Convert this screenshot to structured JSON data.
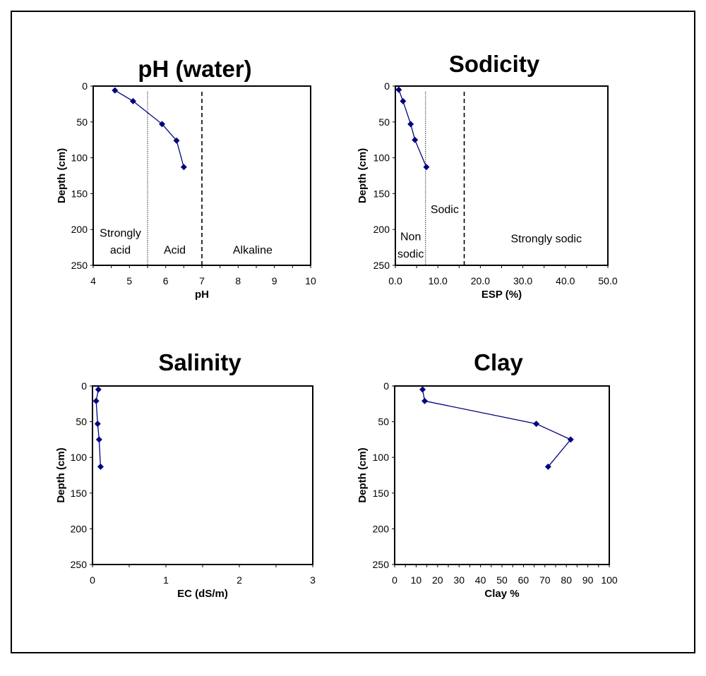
{
  "colors": {
    "series": "#000080",
    "axis": "#000000",
    "background": "#ffffff"
  },
  "chart_data": [
    {
      "type": "line",
      "title": "pH (water)",
      "xlabel": "pH",
      "ylabel": "Depth (cm)",
      "xlim": [
        4,
        10
      ],
      "ylim": [
        0,
        250
      ],
      "y_inverted": true,
      "grid": false,
      "xticks": [
        "4",
        "5",
        "6",
        "7",
        "8",
        "9",
        "10"
      ],
      "xtick_values": [
        4,
        5,
        6,
        7,
        8,
        9,
        10
      ],
      "xminor_step": 0.5,
      "yticks": [
        "0",
        "50",
        "100",
        "150",
        "200",
        "250"
      ],
      "ytick_values": [
        0,
        50,
        100,
        150,
        200,
        250
      ],
      "series": [
        {
          "name": "pH",
          "x": [
            4.6,
            5.1,
            5.9,
            6.3,
            6.5
          ],
          "y": [
            6,
            21,
            53,
            76,
            113
          ]
        }
      ],
      "reference_lines": [
        {
          "x": 5.5,
          "style": "dotted"
        },
        {
          "x": 7,
          "style": "dashed"
        }
      ],
      "zones": [
        {
          "lines": [
            "Strongly",
            "acid"
          ],
          "x": 4.75,
          "y": [
            210,
            234
          ]
        },
        {
          "lines": [
            "Acid"
          ],
          "x": 6.25,
          "y": [
            234
          ]
        },
        {
          "lines": [
            "Alkaline"
          ],
          "x": 8.4,
          "y": [
            234
          ]
        }
      ]
    },
    {
      "type": "line",
      "title": "Sodicity",
      "xlabel": "ESP (%)",
      "ylabel": "Depth (cm)",
      "xlim": [
        0,
        50
      ],
      "ylim": [
        0,
        250
      ],
      "y_inverted": true,
      "grid": false,
      "xticks": [
        "0.0",
        "10.0",
        "20.0",
        "30.0",
        "40.0",
        "50.0"
      ],
      "xtick_values": [
        0,
        10,
        20,
        30,
        40,
        50
      ],
      "xminor_step": 5,
      "yticks": [
        "0",
        "50",
        "100",
        "150",
        "200",
        "250"
      ],
      "ytick_values": [
        0,
        50,
        100,
        150,
        200,
        250
      ],
      "series": [
        {
          "name": "ESP",
          "x": [
            0.8,
            1.8,
            3.6,
            4.6,
            7.3
          ],
          "y": [
            5,
            21,
            53,
            75,
            113
          ]
        }
      ],
      "reference_lines": [
        {
          "x": 7.1,
          "style": "dotted"
        },
        {
          "x": 16.2,
          "style": "dashed"
        }
      ],
      "zones": [
        {
          "lines": [
            "Non",
            "sodic"
          ],
          "x": 3.6,
          "y": [
            215,
            239
          ]
        },
        {
          "lines": [
            "Sodic"
          ],
          "x": 11.6,
          "y": [
            177
          ]
        },
        {
          "lines": [
            "Strongly sodic"
          ],
          "x": 35.5,
          "y": [
            218
          ]
        }
      ]
    },
    {
      "type": "line",
      "title": "Salinity",
      "xlabel": "EC (dS/m)",
      "ylabel": "Depth (cm)",
      "xlim": [
        0,
        3
      ],
      "ylim": [
        0,
        250
      ],
      "y_inverted": true,
      "grid": false,
      "xticks": [
        "0",
        "1",
        "2",
        "3"
      ],
      "xtick_values": [
        0,
        1,
        2,
        3
      ],
      "xminor_step": 0.5,
      "yticks": [
        "0",
        "50",
        "100",
        "150",
        "200",
        "250"
      ],
      "ytick_values": [
        0,
        50,
        100,
        150,
        200,
        250
      ],
      "series": [
        {
          "name": "EC",
          "x": [
            0.08,
            0.05,
            0.07,
            0.09,
            0.11
          ],
          "y": [
            5,
            21,
            53,
            75,
            113
          ]
        }
      ],
      "reference_lines": [],
      "zones": []
    },
    {
      "type": "line",
      "title": "Clay",
      "xlabel": "Clay %",
      "ylabel": "Depth (cm)",
      "xlim": [
        0,
        100
      ],
      "ylim": [
        0,
        250
      ],
      "y_inverted": true,
      "grid": false,
      "xticks": [
        "0",
        "10",
        "20",
        "30",
        "40",
        "50",
        "60",
        "70",
        "80",
        "90",
        "100"
      ],
      "xtick_values": [
        0,
        10,
        20,
        30,
        40,
        50,
        60,
        70,
        80,
        90,
        100
      ],
      "xminor_step": 5,
      "yticks": [
        "0",
        "50",
        "100",
        "150",
        "200",
        "250"
      ],
      "ytick_values": [
        0,
        50,
        100,
        150,
        200,
        250
      ],
      "series": [
        {
          "name": "Clay",
          "x": [
            13,
            14,
            66,
            82,
            71.5
          ],
          "y": [
            5,
            21,
            53,
            75,
            113
          ]
        }
      ],
      "reference_lines": [],
      "zones": []
    }
  ]
}
